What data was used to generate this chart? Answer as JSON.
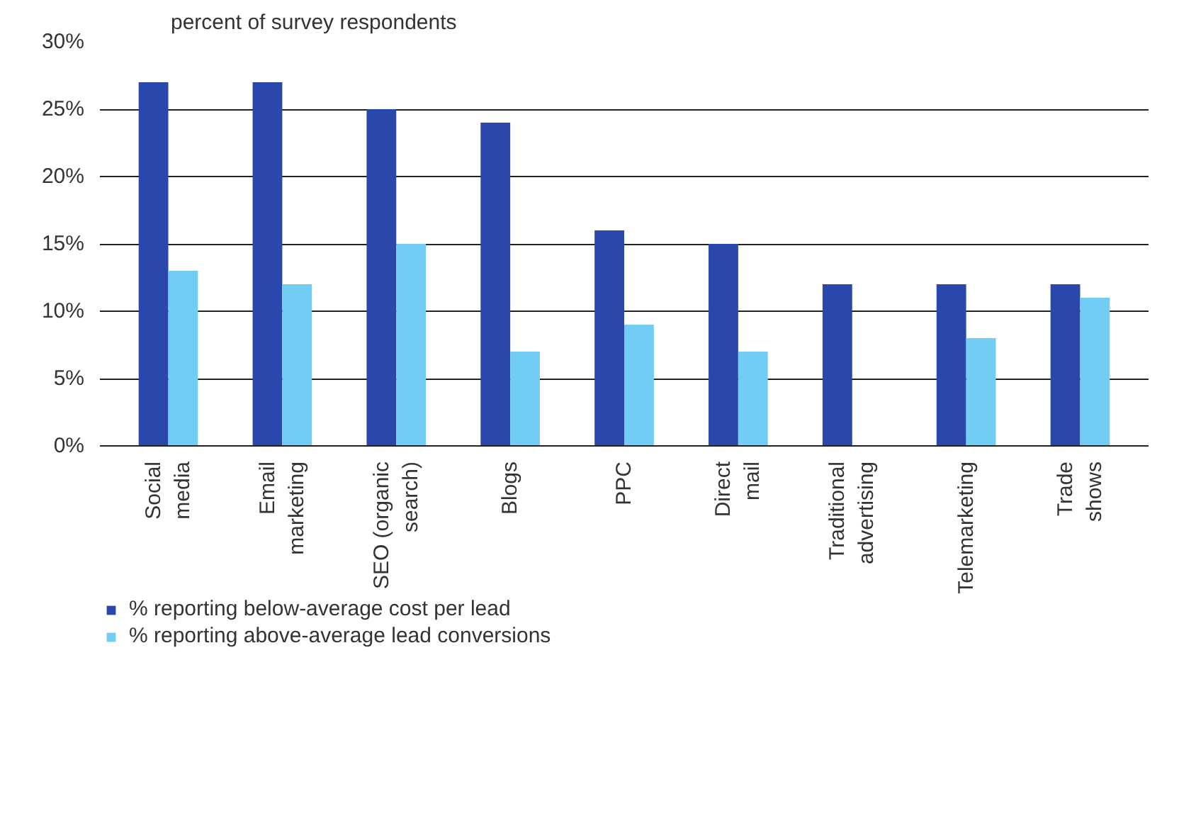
{
  "chart_data": {
    "type": "bar",
    "ylabel": "percent of survey respondents",
    "categories": [
      "Social media",
      "Email marketing",
      "SEO (organic search)",
      "Blogs",
      "PPC",
      "Direct mail",
      "Traditional advertising",
      "Telemarketing",
      "Trade shows"
    ],
    "series": [
      {
        "name": "% reporting below-average cost per lead",
        "color": "#2a47ab",
        "values": [
          27,
          27,
          25,
          24,
          16,
          15,
          12,
          12,
          12
        ]
      },
      {
        "name": "% reporting above-average lead conversions",
        "color": "#72cdf4",
        "values": [
          13,
          12,
          15,
          7,
          9,
          7,
          null,
          8,
          11
        ]
      }
    ],
    "ylim": [
      0,
      30
    ],
    "yticks": [
      {
        "value": 0,
        "label": "0%"
      },
      {
        "value": 5,
        "label": "5%"
      },
      {
        "value": 10,
        "label": "10%"
      },
      {
        "value": 15,
        "label": "15%"
      },
      {
        "value": 20,
        "label": "20%"
      },
      {
        "value": 25,
        "label": "25%"
      },
      {
        "value": 30,
        "label": "30%"
      }
    ],
    "grid": "y",
    "legend": "bottom"
  }
}
